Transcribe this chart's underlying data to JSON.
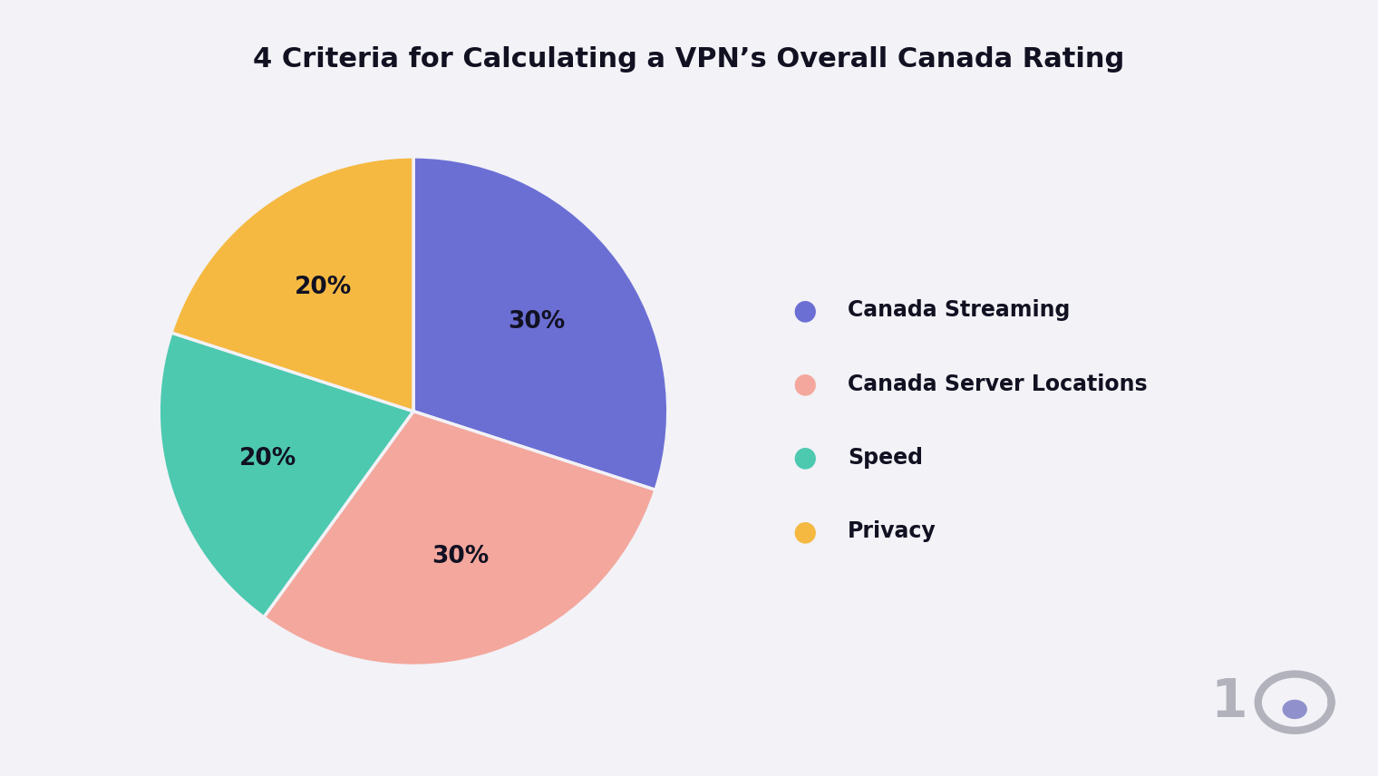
{
  "title": "4 Criteria for Calculating a VPN’s Overall Canada Rating",
  "slices": [
    30,
    30,
    20,
    20
  ],
  "labels": [
    "Canada Streaming",
    "Canada Server Locations",
    "Speed",
    "Privacy"
  ],
  "pct_labels": [
    "30%",
    "30%",
    "20%",
    "20%"
  ],
  "colors": [
    "#6B6FD4",
    "#F4A79D",
    "#4DC9B0",
    "#F5B942"
  ],
  "background_color": "#F2F2F7",
  "start_angle": 90,
  "title_fontsize": 22,
  "legend_fontsize": 17,
  "pct_fontsize": 19,
  "text_color": "#111122",
  "logo_color": "#b2b2bc",
  "logo_dot_color": "#9090cc"
}
